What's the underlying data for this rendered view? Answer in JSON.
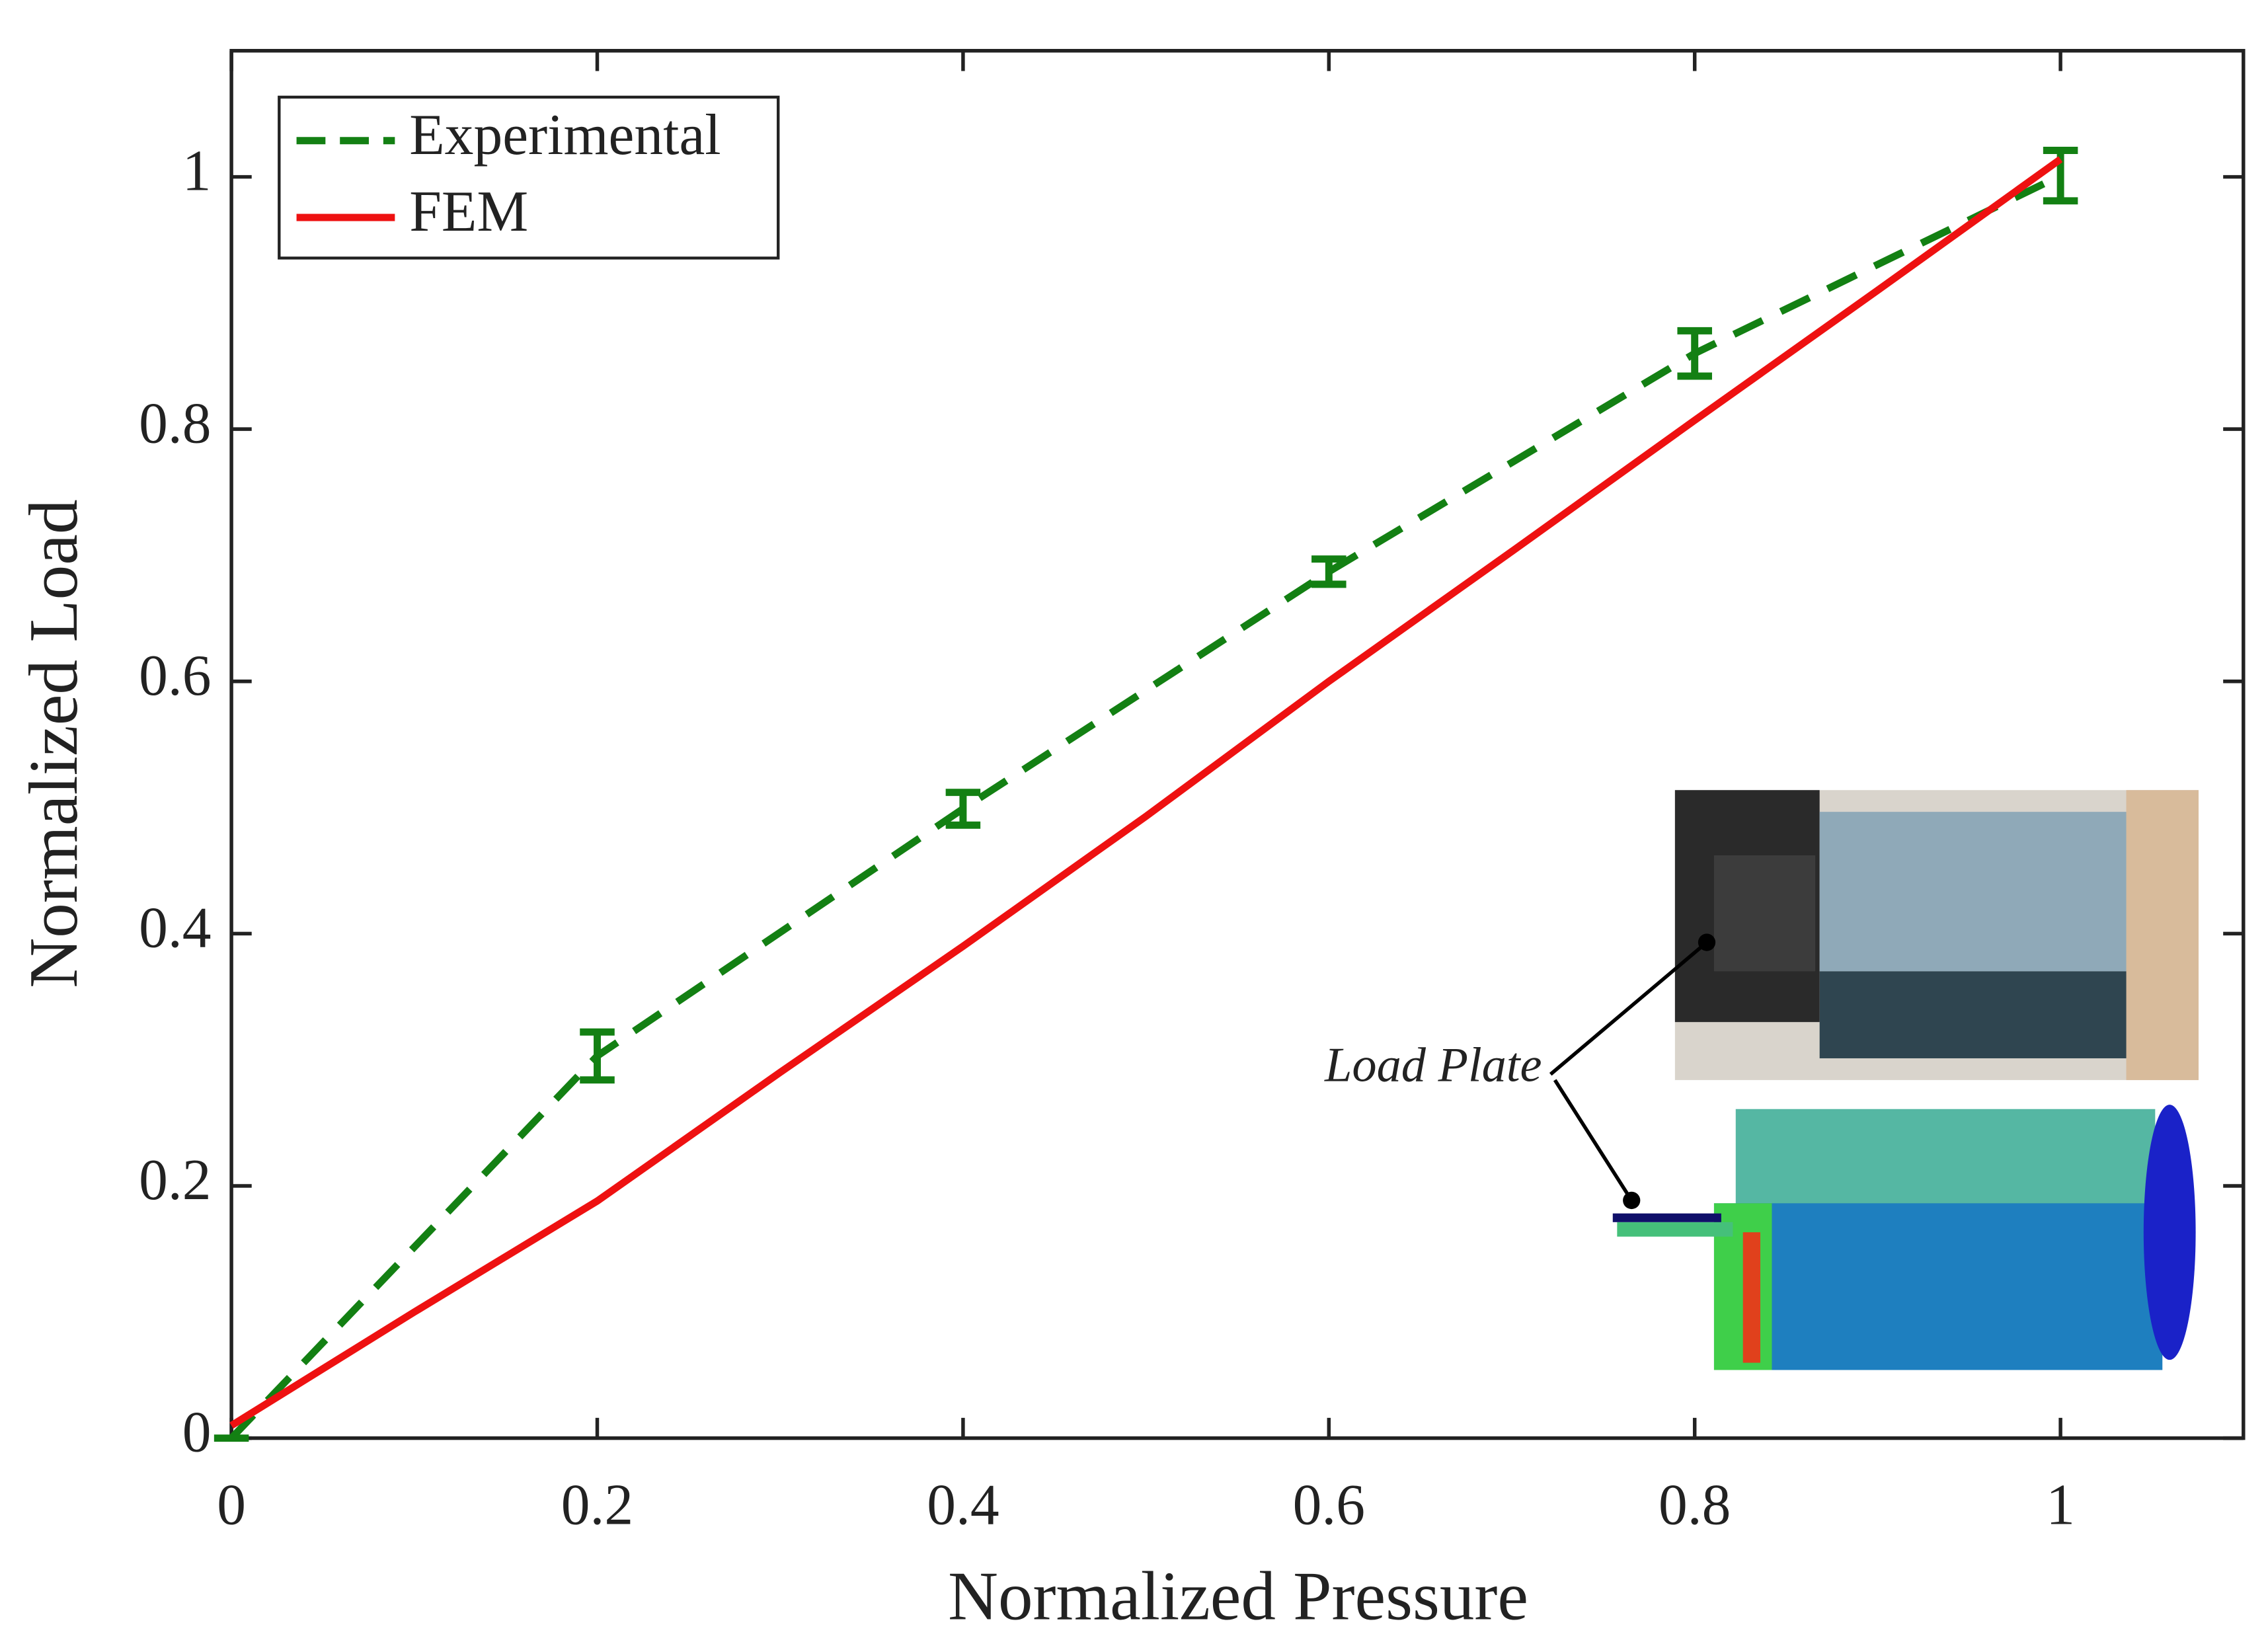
{
  "chart_data": {
    "type": "line",
    "xlabel": "Normalized Pressure",
    "ylabel": "Normalized Load",
    "xlim": [
      0,
      1.1
    ],
    "ylim": [
      0,
      1.1
    ],
    "xticks": [
      0,
      0.2,
      0.4,
      0.6,
      0.8,
      1
    ],
    "yticks": [
      0,
      0.2,
      0.4,
      0.6,
      0.8,
      1
    ],
    "grid": false,
    "legend": "upper left",
    "annotation": "Load Plate",
    "series": [
      {
        "name": "Experimental",
        "color": "#138013",
        "style": "dashed",
        "x": [
          0,
          0.2,
          0.4,
          0.6,
          0.8,
          1
        ],
        "values": [
          0,
          0.303,
          0.499,
          0.687,
          0.86,
          1.001
        ],
        "errors": [
          0,
          0.019,
          0.013,
          0.01,
          0.018,
          0.02
        ]
      },
      {
        "name": "FEM",
        "color": "#ee1111",
        "style": "solid",
        "x": [
          0,
          0.1,
          0.2,
          0.3,
          0.4,
          0.5,
          0.6,
          0.7,
          0.8,
          0.9,
          1
        ],
        "values": [
          0.01,
          0.1,
          0.188,
          0.29,
          0.39,
          0.493,
          0.6,
          0.703,
          0.807,
          0.91,
          1.014
        ]
      }
    ]
  }
}
